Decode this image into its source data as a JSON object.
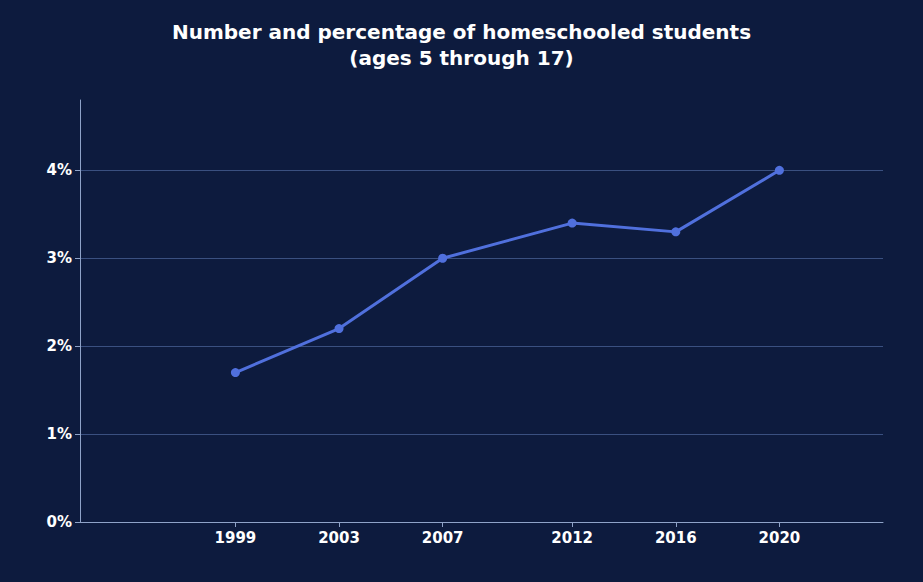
{
  "chart_data": {
    "type": "line",
    "title": "Number and percentage of homeschooled students\n(ages 5 through 17)",
    "x": [
      1999,
      2003,
      2007,
      2012,
      2016,
      2020
    ],
    "values": [
      0.017,
      0.022,
      0.03,
      0.034,
      0.033,
      0.04
    ],
    "xlim": [
      1993,
      2024
    ],
    "xticks": [
      1999,
      2003,
      2007,
      2012,
      2016,
      2020
    ],
    "ylim": [
      0,
      0.048
    ],
    "yticks": [
      {
        "value": 0.0,
        "label": "0%"
      },
      {
        "value": 0.01,
        "label": "1%"
      },
      {
        "value": 0.02,
        "label": "2%"
      },
      {
        "value": 0.03,
        "label": "3%"
      },
      {
        "value": 0.04,
        "label": "4%"
      }
    ],
    "grid": true,
    "marker": "circle"
  }
}
